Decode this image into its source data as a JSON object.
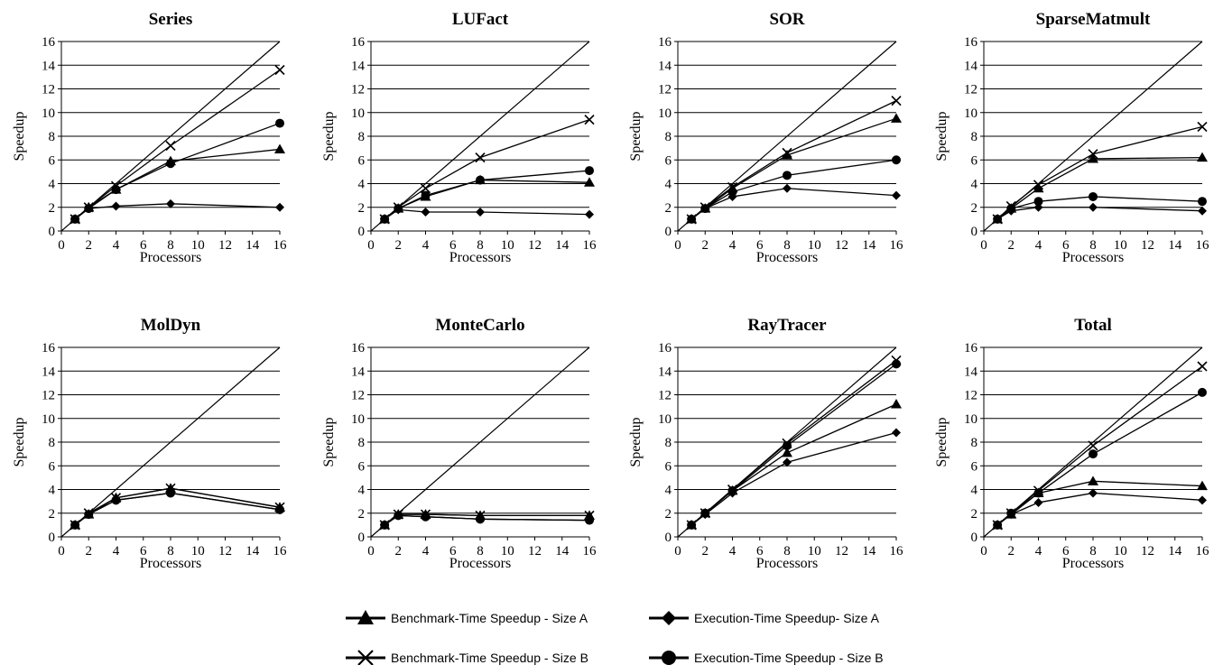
{
  "legend": [
    {
      "label": "Benchmark-Time Speedup - Size A",
      "marker": "triangle"
    },
    {
      "label": "Execution-Time Speedup- Size A",
      "marker": "diamond"
    },
    {
      "label": "Benchmark-Time Speedup - Size B",
      "marker": "x"
    },
    {
      "label": "Execution-Time Speedup - Size B",
      "marker": "circle"
    }
  ],
  "chart_data": [
    {
      "type": "line",
      "title": "Series",
      "xlabel": "Processors",
      "ylabel": "Speedup",
      "x": [
        1,
        2,
        4,
        8,
        16
      ],
      "xlim": [
        0,
        16
      ],
      "ylim": [
        0,
        16
      ],
      "xticks": [
        0,
        2,
        4,
        6,
        8,
        10,
        12,
        14,
        16
      ],
      "yticks": [
        0,
        2,
        4,
        6,
        8,
        10,
        12,
        14,
        16
      ],
      "grid": "horizontal",
      "ideal_line": true,
      "series": [
        {
          "name": "Benchmark-Time Speedup - Size A",
          "marker": "triangle",
          "values": [
            1,
            2,
            3.5,
            5.9,
            6.9
          ]
        },
        {
          "name": "Execution-Time Speedup- Size A",
          "marker": "diamond",
          "values": [
            1,
            1.9,
            2.1,
            2.3,
            2.0
          ]
        },
        {
          "name": "Benchmark-Time Speedup - Size B",
          "marker": "x",
          "values": [
            1,
            2,
            3.8,
            7.2,
            13.6
          ]
        },
        {
          "name": "Execution-Time Speedup - Size B",
          "marker": "circle",
          "values": [
            1,
            1.9,
            3.5,
            5.7,
            9.1
          ]
        }
      ]
    },
    {
      "type": "line",
      "title": "LUFact",
      "xlabel": "Processors",
      "ylabel": "Speedup",
      "x": [
        1,
        2,
        4,
        8,
        16
      ],
      "xlim": [
        0,
        16
      ],
      "ylim": [
        0,
        16
      ],
      "xticks": [
        0,
        2,
        4,
        6,
        8,
        10,
        12,
        14,
        16
      ],
      "yticks": [
        0,
        2,
        4,
        6,
        8,
        10,
        12,
        14,
        16
      ],
      "grid": "horizontal",
      "ideal_line": true,
      "series": [
        {
          "name": "Benchmark-Time Speedup - Size A",
          "marker": "triangle",
          "values": [
            1,
            1.9,
            2.9,
            4.3,
            4.1
          ]
        },
        {
          "name": "Execution-Time Speedup- Size A",
          "marker": "diamond",
          "values": [
            1,
            1.8,
            1.6,
            1.6,
            1.4
          ]
        },
        {
          "name": "Benchmark-Time Speedup - Size B",
          "marker": "x",
          "values": [
            1,
            2,
            3.6,
            6.2,
            9.4
          ]
        },
        {
          "name": "Execution-Time Speedup - Size B",
          "marker": "circle",
          "values": [
            1,
            1.9,
            3.0,
            4.3,
            5.1
          ]
        }
      ]
    },
    {
      "type": "line",
      "title": "SOR",
      "xlabel": "Processors",
      "ylabel": "Speedup",
      "x": [
        1,
        2,
        4,
        8,
        16
      ],
      "xlim": [
        0,
        16
      ],
      "ylim": [
        0,
        16
      ],
      "xticks": [
        0,
        2,
        4,
        6,
        8,
        10,
        12,
        14,
        16
      ],
      "yticks": [
        0,
        2,
        4,
        6,
        8,
        10,
        12,
        14,
        16
      ],
      "grid": "horizontal",
      "ideal_line": true,
      "series": [
        {
          "name": "Benchmark-Time Speedup - Size A",
          "marker": "triangle",
          "values": [
            1,
            1.9,
            3.6,
            6.4,
            9.5
          ]
        },
        {
          "name": "Execution-Time Speedup- Size A",
          "marker": "diamond",
          "values": [
            1,
            1.9,
            2.9,
            3.6,
            3.0
          ]
        },
        {
          "name": "Benchmark-Time Speedup - Size B",
          "marker": "x",
          "values": [
            1,
            2,
            3.7,
            6.6,
            11.0
          ]
        },
        {
          "name": "Execution-Time Speedup - Size B",
          "marker": "circle",
          "values": [
            1,
            1.9,
            3.3,
            4.7,
            6.0
          ]
        }
      ]
    },
    {
      "type": "line",
      "title": "SparseMatmult",
      "xlabel": "Processors",
      "ylabel": "Speedup",
      "x": [
        1,
        2,
        4,
        8,
        16
      ],
      "xlim": [
        0,
        16
      ],
      "ylim": [
        0,
        16
      ],
      "xticks": [
        0,
        2,
        4,
        6,
        8,
        10,
        12,
        14,
        16
      ],
      "yticks": [
        0,
        2,
        4,
        6,
        8,
        10,
        12,
        14,
        16
      ],
      "grid": "horizontal",
      "ideal_line": true,
      "series": [
        {
          "name": "Benchmark-Time Speedup - Size A",
          "marker": "triangle",
          "values": [
            1,
            1.9,
            3.6,
            6.1,
            6.2
          ]
        },
        {
          "name": "Execution-Time Speedup- Size A",
          "marker": "diamond",
          "values": [
            1,
            1.7,
            2.0,
            2.0,
            1.7
          ]
        },
        {
          "name": "Benchmark-Time Speedup - Size B",
          "marker": "x",
          "values": [
            1,
            2.1,
            3.9,
            6.5,
            8.8
          ]
        },
        {
          "name": "Execution-Time Speedup - Size B",
          "marker": "circle",
          "values": [
            1,
            1.9,
            2.5,
            2.9,
            2.5
          ]
        }
      ]
    },
    {
      "type": "line",
      "title": "MolDyn",
      "xlabel": "Processors",
      "ylabel": "Speedup",
      "x": [
        1,
        2,
        4,
        8,
        16
      ],
      "xlim": [
        0,
        16
      ],
      "ylim": [
        0,
        16
      ],
      "xticks": [
        0,
        2,
        4,
        6,
        8,
        10,
        12,
        14,
        16
      ],
      "yticks": [
        0,
        2,
        4,
        6,
        8,
        10,
        12,
        14,
        16
      ],
      "grid": "horizontal",
      "ideal_line": true,
      "series": [
        {
          "name": "Benchmark-Time Speedup - Size A",
          "marker": "triangle",
          "values": [
            1,
            1.9,
            3.3,
            4.1,
            2.5
          ]
        },
        {
          "name": "Execution-Time Speedup- Size A",
          "marker": "diamond",
          "values": [
            1,
            1.9,
            3.1,
            3.7,
            2.3
          ]
        },
        {
          "name": "Benchmark-Time Speedup - Size B",
          "marker": "x",
          "values": [
            1,
            2,
            3.3,
            4.1,
            2.5
          ]
        },
        {
          "name": "Execution-Time Speedup - Size B",
          "marker": "circle",
          "values": [
            1,
            1.9,
            3.1,
            3.7,
            2.3
          ]
        }
      ]
    },
    {
      "type": "line",
      "title": "MonteCarlo",
      "xlabel": "Processors",
      "ylabel": "Speedup",
      "x": [
        1,
        2,
        4,
        8,
        16
      ],
      "xlim": [
        0,
        16
      ],
      "ylim": [
        0,
        16
      ],
      "xticks": [
        0,
        2,
        4,
        6,
        8,
        10,
        12,
        14,
        16
      ],
      "yticks": [
        0,
        2,
        4,
        6,
        8,
        10,
        12,
        14,
        16
      ],
      "grid": "horizontal",
      "ideal_line": true,
      "series": [
        {
          "name": "Benchmark-Time Speedup - Size A",
          "marker": "triangle",
          "values": [
            1,
            1.9,
            1.9,
            1.8,
            1.8
          ]
        },
        {
          "name": "Execution-Time Speedup- Size A",
          "marker": "diamond",
          "values": [
            1,
            1.8,
            1.7,
            1.5,
            1.4
          ]
        },
        {
          "name": "Benchmark-Time Speedup - Size B",
          "marker": "x",
          "values": [
            1,
            1.9,
            1.9,
            1.8,
            1.8
          ]
        },
        {
          "name": "Execution-Time Speedup - Size B",
          "marker": "circle",
          "values": [
            1,
            1.8,
            1.7,
            1.5,
            1.4
          ]
        }
      ]
    },
    {
      "type": "line",
      "title": "RayTracer",
      "xlabel": "Processors",
      "ylabel": "Speedup",
      "x": [
        1,
        2,
        4,
        8,
        16
      ],
      "xlim": [
        0,
        16
      ],
      "ylim": [
        0,
        16
      ],
      "xticks": [
        0,
        2,
        4,
        6,
        8,
        10,
        12,
        14,
        16
      ],
      "yticks": [
        0,
        2,
        4,
        6,
        8,
        10,
        12,
        14,
        16
      ],
      "grid": "horizontal",
      "ideal_line": true,
      "series": [
        {
          "name": "Benchmark-Time Speedup - Size A",
          "marker": "triangle",
          "values": [
            1,
            2,
            3.9,
            7.1,
            11.2
          ]
        },
        {
          "name": "Execution-Time Speedup- Size A",
          "marker": "diamond",
          "values": [
            1,
            1.9,
            3.7,
            6.3,
            8.8
          ]
        },
        {
          "name": "Benchmark-Time Speedup - Size B",
          "marker": "x",
          "values": [
            1,
            2,
            4.0,
            7.9,
            14.9
          ]
        },
        {
          "name": "Execution-Time Speedup - Size B",
          "marker": "circle",
          "values": [
            1,
            2,
            3.9,
            7.7,
            14.6
          ]
        }
      ]
    },
    {
      "type": "line",
      "title": "Total",
      "xlabel": "Processors",
      "ylabel": "Speedup",
      "x": [
        1,
        2,
        4,
        8,
        16
      ],
      "xlim": [
        0,
        16
      ],
      "ylim": [
        0,
        16
      ],
      "xticks": [
        0,
        2,
        4,
        6,
        8,
        10,
        12,
        14,
        16
      ],
      "yticks": [
        0,
        2,
        4,
        6,
        8,
        10,
        12,
        14,
        16
      ],
      "grid": "horizontal",
      "ideal_line": true,
      "series": [
        {
          "name": "Benchmark-Time Speedup - Size A",
          "marker": "triangle",
          "values": [
            1,
            1.9,
            3.7,
            4.7,
            4.3
          ]
        },
        {
          "name": "Execution-Time Speedup- Size A",
          "marker": "diamond",
          "values": [
            1,
            1.9,
            2.9,
            3.7,
            3.1
          ]
        },
        {
          "name": "Benchmark-Time Speedup - Size B",
          "marker": "x",
          "values": [
            1,
            2,
            3.9,
            7.7,
            14.4
          ]
        },
        {
          "name": "Execution-Time Speedup - Size B",
          "marker": "circle",
          "values": [
            1,
            2,
            3.7,
            7.0,
            12.2
          ]
        }
      ]
    }
  ]
}
